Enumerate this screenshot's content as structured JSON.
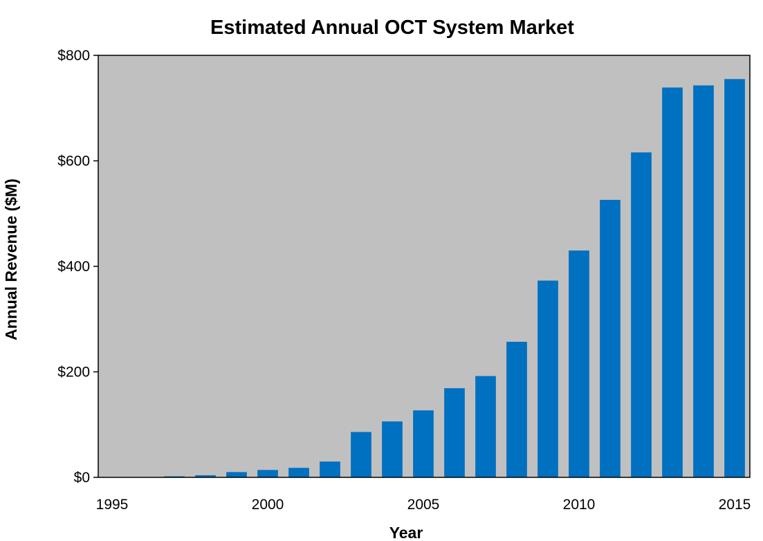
{
  "chart_data": {
    "type": "bar",
    "title": "Estimated Annual OCT System Market",
    "xlabel": "Year",
    "ylabel": "Annual Revenue ($M)",
    "x": [
      1995,
      1996,
      1997,
      1998,
      1999,
      2000,
      2001,
      2002,
      2003,
      2004,
      2005,
      2006,
      2007,
      2008,
      2009,
      2010,
      2011,
      2012,
      2013,
      2014,
      2015
    ],
    "values": [
      0,
      0,
      2,
      4,
      10,
      14,
      18,
      30,
      86,
      106,
      127,
      169,
      192,
      257,
      373,
      430,
      526,
      616,
      739,
      743,
      755
    ],
    "ylim": [
      0,
      800
    ],
    "xlim": [
      1995,
      2015
    ],
    "y_ticks": [
      0,
      200,
      400,
      600,
      800
    ],
    "y_tick_labels": [
      "$0",
      "$200",
      "$400",
      "$600",
      "$800"
    ],
    "x_ticks": [
      1995,
      2000,
      2005,
      2010,
      2015
    ],
    "x_tick_labels": [
      "1995",
      "2000",
      "2005",
      "2010",
      "2015"
    ],
    "grid": false,
    "legend": "none",
    "colors": {
      "bar": "#0070C0",
      "plot_background": "#C0C0C0",
      "axis": "#000000"
    }
  }
}
